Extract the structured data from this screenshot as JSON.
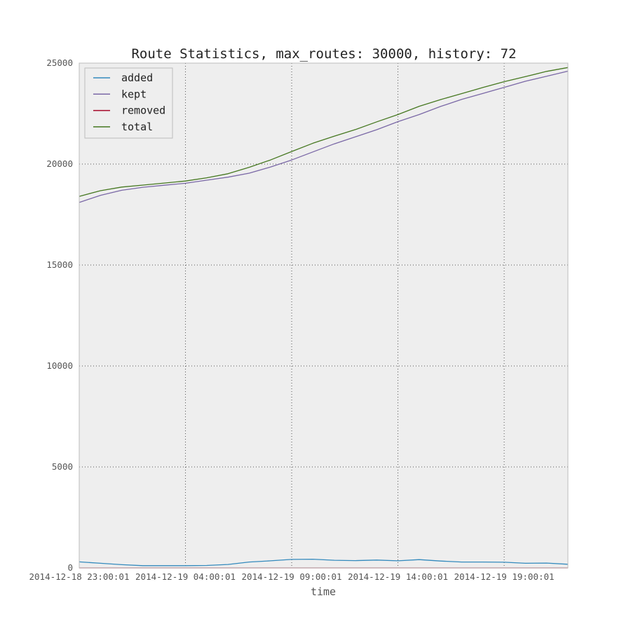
{
  "chart_data": {
    "type": "line",
    "title": "Route Statistics, max_routes: 30000, history: 72",
    "xlabel": "time",
    "ylabel": "",
    "ylim": [
      0,
      25000
    ],
    "yticks": [
      0,
      5000,
      10000,
      15000,
      20000,
      25000
    ],
    "xlim_hours": [
      0,
      23
    ],
    "xticks": [
      {
        "hour": 0,
        "label": "2014-12-18 23:00:01"
      },
      {
        "hour": 5,
        "label": "2014-12-19 04:00:01"
      },
      {
        "hour": 10,
        "label": "2014-12-19 09:00:01"
      },
      {
        "hour": 15,
        "label": "2014-12-19 14:00:01"
      },
      {
        "hour": 20,
        "label": "2014-12-19 19:00:01"
      }
    ],
    "x_hours": [
      0,
      1,
      2,
      3,
      4,
      5,
      6,
      7,
      8,
      9,
      10,
      11,
      12,
      13,
      14,
      15,
      16,
      17,
      18,
      19,
      20,
      21,
      22,
      23
    ],
    "grid": true,
    "legend_position": "top-left",
    "series": [
      {
        "name": "added",
        "color": "#348ABD",
        "values": [
          300,
          230,
          160,
          110,
          110,
          110,
          120,
          170,
          290,
          350,
          420,
          430,
          380,
          360,
          390,
          350,
          410,
          340,
          290,
          290,
          280,
          230,
          240,
          180
        ]
      },
      {
        "name": "kept",
        "color": "#7A68A6",
        "values": [
          18100,
          18450,
          18700,
          18850,
          18950,
          19050,
          19200,
          19350,
          19550,
          19850,
          20200,
          20600,
          21000,
          21350,
          21700,
          22100,
          22450,
          22850,
          23200,
          23500,
          23800,
          24100,
          24350,
          24600
        ]
      },
      {
        "name": "removed",
        "color": "#A60628",
        "values": [
          0,
          0,
          0,
          0,
          0,
          0,
          0,
          0,
          0,
          0,
          0,
          0,
          0,
          0,
          0,
          0,
          0,
          0,
          0,
          0,
          0,
          0,
          0,
          0
        ]
      },
      {
        "name": "total",
        "color": "#467821",
        "values": [
          18400,
          18680,
          18860,
          18960,
          19060,
          19160,
          19320,
          19520,
          19840,
          20200,
          20620,
          21030,
          21380,
          21710,
          22090,
          22450,
          22860,
          23190,
          23490,
          23790,
          24080,
          24330,
          24590,
          24780
        ]
      }
    ]
  }
}
